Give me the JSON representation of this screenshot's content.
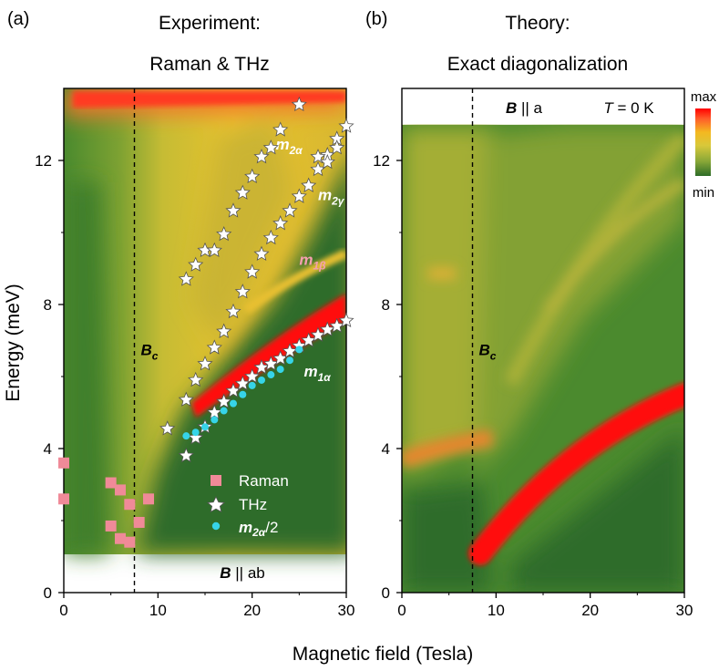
{
  "figure": {
    "xlabel": "Magnetic field (Tesla)",
    "ylabel": "Energy (meV)"
  },
  "chart_data": [
    {
      "panel_label": "(a)",
      "title_line1": "Experiment:",
      "title_line2": "Raman & THz",
      "type": "heatmap",
      "xlim": [
        0,
        30
      ],
      "ylim": [
        0,
        14
      ],
      "data_ylim": [
        1,
        14
      ],
      "xticks": [
        0,
        10,
        20,
        30
      ],
      "yticks": [
        0,
        4,
        8,
        12
      ],
      "xtick_labels": [
        "0",
        "10",
        "20",
        "30"
      ],
      "ytick_labels": [
        "0",
        "4",
        "8",
        "12"
      ],
      "field_label": {
        "bold": "B",
        "rest": " || ab"
      },
      "bc_line": {
        "x": 7.5,
        "label_main": "B",
        "label_sub": "c"
      },
      "legend": [
        "Raman",
        "THz",
        "m2α/2"
      ],
      "legend_placement": "bottom-right",
      "mode_labels": [
        {
          "name": "m",
          "sub": "2α",
          "x": 22.5,
          "y": 12.3,
          "color": "#ffffff"
        },
        {
          "name": "m",
          "sub": "2γ",
          "x": 27.0,
          "y": 10.9,
          "color": "#ffffff"
        },
        {
          "name": "m",
          "sub": "1β",
          "x": 25.0,
          "y": 9.1,
          "color": "#f4a0b0"
        },
        {
          "name": "m",
          "sub": "1α",
          "x": 25.5,
          "y": 6.0,
          "color": "#ffffff"
        }
      ],
      "series": [
        {
          "name": "Raman",
          "marker": "square",
          "color": "#f08a98",
          "points": [
            [
              0,
              3.6
            ],
            [
              0,
              2.6
            ],
            [
              5,
              3.05
            ],
            [
              6,
              2.85
            ],
            [
              7,
              2.45
            ],
            [
              9,
              2.6
            ],
            [
              5,
              1.85
            ],
            [
              6,
              1.5
            ],
            [
              7,
              1.4
            ],
            [
              8,
              1.95
            ]
          ]
        },
        {
          "name": "THz",
          "marker": "star",
          "color": "#ffffff",
          "points": [
            [
              11,
              4.55
            ],
            [
              13,
              3.8
            ],
            [
              14,
              4.3
            ],
            [
              15,
              4.6
            ],
            [
              16,
              5.0
            ],
            [
              17,
              5.3
            ],
            [
              18,
              5.6
            ],
            [
              19,
              5.8
            ],
            [
              20,
              6.0
            ],
            [
              21,
              6.25
            ],
            [
              22,
              6.35
            ],
            [
              23,
              6.5
            ],
            [
              24,
              6.7
            ],
            [
              25,
              6.85
            ],
            [
              26,
              7.0
            ],
            [
              27,
              7.15
            ],
            [
              28,
              7.3
            ],
            [
              29,
              7.4
            ],
            [
              30,
              7.55
            ],
            [
              13,
              5.35
            ],
            [
              14,
              5.9
            ],
            [
              15,
              6.35
            ],
            [
              16,
              6.8
            ],
            [
              17,
              7.25
            ],
            [
              18,
              7.8
            ],
            [
              19,
              8.35
            ],
            [
              20,
              8.9
            ],
            [
              21,
              9.4
            ],
            [
              22,
              9.85
            ],
            [
              23,
              10.25
            ],
            [
              24,
              10.6
            ],
            [
              25,
              11.0
            ],
            [
              26,
              11.3
            ],
            [
              27,
              11.75
            ],
            [
              28,
              12.15
            ],
            [
              29,
              12.6
            ],
            [
              30,
              12.95
            ],
            [
              13,
              8.7
            ],
            [
              14,
              9.1
            ],
            [
              15,
              9.5
            ],
            [
              16,
              9.5
            ],
            [
              17,
              9.95
            ],
            [
              18,
              10.6
            ],
            [
              19,
              11.1
            ],
            [
              20,
              11.55
            ],
            [
              21,
              12.1
            ],
            [
              22,
              12.35
            ],
            [
              23,
              12.85
            ],
            [
              25,
              13.55
            ],
            [
              27,
              12.1
            ],
            [
              28,
              11.95
            ],
            [
              29,
              12.35
            ]
          ]
        },
        {
          "name": "m2α/2",
          "marker": "circle",
          "color": "#36d4e8",
          "points": [
            [
              13,
              4.35
            ],
            [
              14,
              4.45
            ],
            [
              15,
              4.6
            ],
            [
              16,
              4.8
            ],
            [
              17,
              5.05
            ],
            [
              18,
              5.25
            ],
            [
              19,
              5.5
            ],
            [
              20,
              5.75
            ],
            [
              21,
              5.9
            ],
            [
              22,
              6.05
            ],
            [
              23,
              6.2
            ],
            [
              24,
              6.45
            ],
            [
              25,
              6.75
            ]
          ]
        }
      ]
    },
    {
      "panel_label": "(b)",
      "title_line1": "Theory:",
      "title_line2": "Exact diagonalization",
      "type": "heatmap",
      "xlim": [
        0,
        30
      ],
      "ylim": [
        0,
        14
      ],
      "data_ylim": [
        0,
        13
      ],
      "xticks": [
        0,
        10,
        20,
        30
      ],
      "yticks": [
        0,
        4,
        8,
        12
      ],
      "xtick_labels": [
        "0",
        "10",
        "20",
        "30"
      ],
      "ytick_labels": [
        "0",
        "4",
        "8",
        "12"
      ],
      "field_label": {
        "bold": "B",
        "rest": " || a"
      },
      "temperature_label": {
        "italic": "T",
        "rest": " = 0 K"
      },
      "bc_line": {
        "x": 7.5,
        "label_main": "B",
        "label_sub": "c"
      },
      "colorbar": {
        "max_label": "max",
        "min_label": "min",
        "colors": [
          "#ff0000",
          "#ff5c2a",
          "#f4b820",
          "#d8c83a",
          "#8aa838",
          "#2e6c28"
        ]
      }
    }
  ]
}
